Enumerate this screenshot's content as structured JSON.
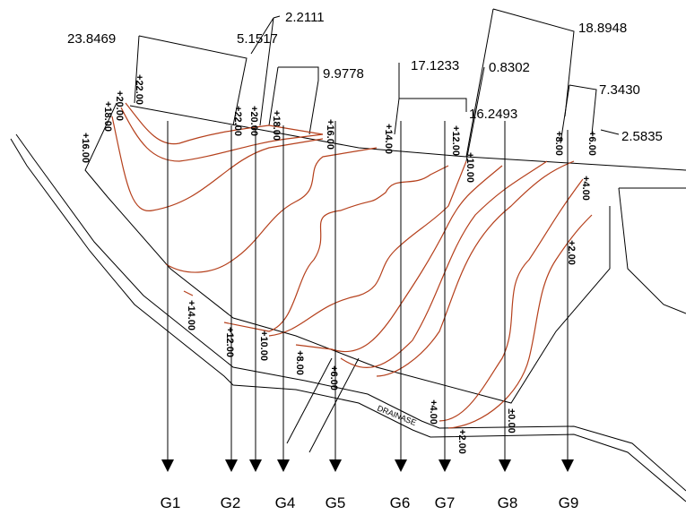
{
  "dimensions": [
    "23.8469",
    "5.1517",
    "2.2111",
    "9.9778",
    "17.1233",
    "0.8302",
    "18.8948",
    "7.3430",
    "16.2493",
    "2.5835"
  ],
  "contour_labels": [
    "+22.00",
    "+20.00",
    "+18.00",
    "+16.00",
    "+22.00",
    "+20.00",
    "+18.00",
    "+16.00",
    "+14.00",
    "+12.00",
    "+10.00",
    "+8.00",
    "+6.00",
    "+4.00",
    "+2.00",
    "+14.00",
    "+12.00",
    "+10.00",
    "+8.00",
    "+6.00",
    "+4.00",
    "+2.00",
    "±0.00"
  ],
  "drain_label": "DRAINASE",
  "sections": [
    "G1",
    "G2",
    "G4",
    "G5",
    "G6",
    "G7",
    "G8",
    "G9"
  ]
}
